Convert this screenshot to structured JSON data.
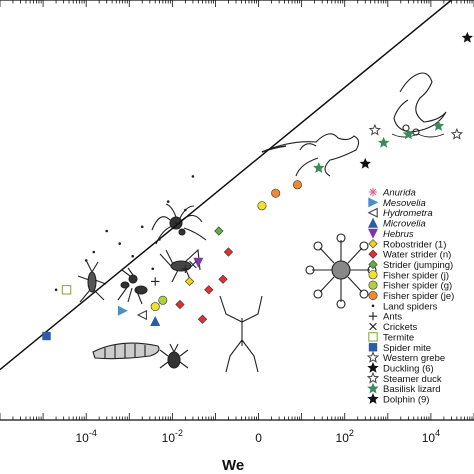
{
  "chart_data": {
    "type": "scatter",
    "title": "",
    "xlabel": "We",
    "ylabel": "",
    "x_scale": "log",
    "xlim": [
      1e-06,
      100000.0
    ],
    "ylim": [
      0,
      10
    ],
    "x_tick_labels": [
      {
        "value": 0.0001,
        "base": "10",
        "exp": "-4"
      },
      {
        "value": 0.01,
        "base": "10",
        "exp": "-2"
      },
      {
        "value": 1,
        "base": "0",
        "exp": ""
      },
      {
        "value": 100,
        "base": "10",
        "exp": "2"
      },
      {
        "value": 10000,
        "base": "10",
        "exp": "4"
      }
    ],
    "fit_line": {
      "x": [
        1e-06,
        30000.0
      ],
      "y": [
        1.2,
        10
      ]
    },
    "series": [
      {
        "name": "Anurida",
        "italic": true,
        "marker": "asterisk",
        "color": "#e06a8a",
        "points": []
      },
      {
        "name": "Mesovelia",
        "italic": true,
        "marker": "tri-right",
        "color": "#4a90c8",
        "points": [
          {
            "x": 0.0007,
            "y": 2.6
          }
        ]
      },
      {
        "name": "Hydrometra",
        "italic": true,
        "marker": "tri-left-open",
        "color": "#444444",
        "points": [
          {
            "x": 0.002,
            "y": 2.5
          }
        ]
      },
      {
        "name": "Microvelia",
        "italic": true,
        "marker": "tri-up",
        "color": "#2a5ca8",
        "points": [
          {
            "x": 0.004,
            "y": 2.35
          }
        ]
      },
      {
        "name": "Hebrus",
        "italic": true,
        "marker": "tri-down",
        "color": "#7a3aa8",
        "points": [
          {
            "x": 0.04,
            "y": 3.75
          }
        ]
      },
      {
        "name": "Robostrider (1)",
        "marker": "diamond",
        "color": "#f0d020",
        "points": [
          {
            "x": 0.025,
            "y": 3.3
          }
        ]
      },
      {
        "name": "Water strider (n)",
        "marker": "diamond",
        "color": "#e03030",
        "points": [
          {
            "x": 0.015,
            "y": 2.75
          },
          {
            "x": 0.07,
            "y": 3.1
          },
          {
            "x": 0.05,
            "y": 2.4
          },
          {
            "x": 0.2,
            "y": 4.0
          },
          {
            "x": 0.15,
            "y": 3.35
          }
        ]
      },
      {
        "name": "Strider (jumping)",
        "marker": "diamond",
        "color": "#60b040",
        "points": [
          {
            "x": 0.12,
            "y": 4.5
          }
        ]
      },
      {
        "name": "Fisher spider (j)",
        "marker": "circle",
        "color": "#f0e030",
        "points": [
          {
            "x": 0.004,
            "y": 2.7
          },
          {
            "x": 1.2,
            "y": 5.1
          }
        ]
      },
      {
        "name": "Fisher spider (g)",
        "marker": "circle",
        "color": "#b0d040",
        "points": [
          {
            "x": 0.006,
            "y": 2.85
          }
        ]
      },
      {
        "name": "Fisher spider (je)",
        "marker": "circle",
        "color": "#f08a30",
        "points": [
          {
            "x": 2.5,
            "y": 5.4
          },
          {
            "x": 8,
            "y": 5.6
          }
        ]
      },
      {
        "name": "Land spiders",
        "marker": "dot",
        "color": "#222222",
        "points": [
          {
            "x": 2e-05,
            "y": 3.1
          },
          {
            "x": 0.0003,
            "y": 4.5
          },
          {
            "x": 0.0006,
            "y": 4.2
          },
          {
            "x": 0.0012,
            "y": 3.9
          },
          {
            "x": 0.002,
            "y": 4.6
          },
          {
            "x": 0.0035,
            "y": 3.6
          },
          {
            "x": 0.005,
            "y": 4.3
          },
          {
            "x": 0.008,
            "y": 5.2
          },
          {
            "x": 0.012,
            "y": 4.7
          },
          {
            "x": 0.02,
            "y": 5.0
          },
          {
            "x": 0.03,
            "y": 5.8
          },
          {
            "x": 0.0001,
            "y": 3.8
          },
          {
            "x": 0.00015,
            "y": 4.0
          }
        ]
      },
      {
        "name": "Ants",
        "marker": "plus",
        "color": "#222222",
        "points": [
          {
            "x": 0.004,
            "y": 3.3
          },
          {
            "x": 0.02,
            "y": 3.6
          }
        ]
      },
      {
        "name": "Crickets",
        "marker": "cross",
        "color": "#222222",
        "points": [
          {
            "x": 0.03,
            "y": 3.7
          }
        ]
      },
      {
        "name": "Termite",
        "marker": "square-open",
        "color": "#88b040",
        "points": [
          {
            "x": 3.5e-05,
            "y": 3.1
          }
        ]
      },
      {
        "name": "Spider mite",
        "marker": "square",
        "color": "#2a5ca8",
        "points": [
          {
            "x": 1.2e-05,
            "y": 2.0
          }
        ]
      },
      {
        "name": "Western grebe",
        "marker": "star-open",
        "color": "#444444",
        "points": [
          {
            "x": 500,
            "y": 6.9
          }
        ]
      },
      {
        "name": "Duckling (6)",
        "marker": "star",
        "color": "#111111",
        "points": [
          {
            "x": 300,
            "y": 6.1
          }
        ]
      },
      {
        "name": "Steamer duck",
        "marker": "star-open",
        "color": "#444444",
        "points": [
          {
            "x": 40000,
            "y": 6.8
          }
        ]
      },
      {
        "name": "Basilisk lizard",
        "marker": "star",
        "color": "#3a8a5a",
        "points": [
          {
            "x": 25,
            "y": 6.0
          },
          {
            "x": 800,
            "y": 6.6
          },
          {
            "x": 3000,
            "y": 6.8
          },
          {
            "x": 15000,
            "y": 7.0
          }
        ]
      },
      {
        "name": "Dolphin (9)",
        "marker": "star",
        "color": "#111111",
        "points": [
          {
            "x": 70000,
            "y": 9.1
          }
        ]
      }
    ],
    "legend_position": "right"
  }
}
